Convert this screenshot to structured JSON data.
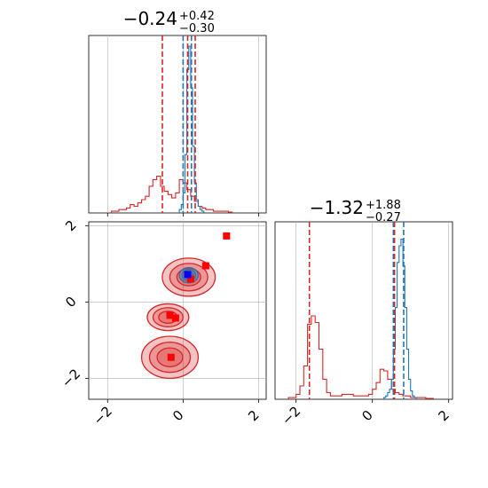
{
  "chart_data": [
    {
      "type": "histogram",
      "panel": "top-left",
      "title_value": "−0.24",
      "title_upper": "+0.42",
      "title_lower": "−0.30",
      "xlim": [
        -2.5,
        2.2
      ],
      "xticks": [
        -2,
        0,
        2
      ],
      "grid": true,
      "series": [
        {
          "color": "#d62728",
          "bins": [
            -1.9,
            -1.8,
            -1.7,
            -1.6,
            -1.5,
            -1.4,
            -1.3,
            -1.2,
            -1.1,
            -1.0,
            -0.9,
            -0.8,
            -0.7,
            -0.6,
            -0.5,
            -0.4,
            -0.3,
            -0.2,
            -0.1,
            0.0,
            0.1,
            0.2,
            0.3,
            0.4,
            0.5,
            0.6,
            0.7,
            0.8,
            0.9,
            1.0,
            1.1,
            1.2
          ],
          "values": [
            0.01,
            0.01,
            0.02,
            0.02,
            0.03,
            0.05,
            0.04,
            0.06,
            0.08,
            0.1,
            0.16,
            0.2,
            0.22,
            0.16,
            0.13,
            0.11,
            0.09,
            0.12,
            0.2,
            0.18,
            0.14,
            0.1,
            0.07,
            0.04,
            0.03,
            0.02,
            0.02,
            0.01,
            0.01,
            0.01,
            0.01,
            0.005
          ]
        },
        {
          "color": "#1f77b4",
          "bins": [
            -0.1,
            -0.05,
            0.0,
            0.05,
            0.1,
            0.15,
            0.2,
            0.25,
            0.3,
            0.35,
            0.4,
            0.45,
            0.5
          ],
          "values": [
            0.02,
            0.05,
            0.12,
            0.35,
            0.86,
            1.0,
            0.75,
            0.4,
            0.18,
            0.08,
            0.04,
            0.02,
            0.01
          ]
        }
      ],
      "vlines": [
        {
          "x": -0.55,
          "color": "#d62728"
        },
        {
          "x": 0.0,
          "color": "#1f77b4"
        },
        {
          "x": 0.12,
          "color": "#d62728"
        },
        {
          "x": 0.22,
          "color": "#1f77b4"
        },
        {
          "x": 0.32,
          "color": "#d62728"
        }
      ]
    },
    {
      "type": "scatter",
      "panel": "bottom-left",
      "xlim": [
        -2.5,
        2.2
      ],
      "ylim": [
        -2.55,
        2.1
      ],
      "xticks": [
        -2,
        0,
        2
      ],
      "yticks": [
        -2,
        0,
        2
      ],
      "grid": true,
      "contours": [
        {
          "cx": 0.15,
          "cy": 0.65,
          "rx": 0.7,
          "ry": 0.5,
          "color": "#d62728"
        },
        {
          "cx": -0.4,
          "cy": -0.4,
          "rx": 0.55,
          "ry": 0.35,
          "color": "#d62728"
        },
        {
          "cx": -0.35,
          "cy": -1.45,
          "rx": 0.75,
          "ry": 0.55,
          "color": "#d62728"
        },
        {
          "cx": 0.15,
          "cy": 0.7,
          "rx": 0.25,
          "ry": 0.2,
          "color": "#1f77b4"
        }
      ],
      "points": [
        {
          "x": 1.15,
          "y": 1.73,
          "color": "#ff0000"
        },
        {
          "x": 0.6,
          "y": 0.95,
          "color": "#ff0000"
        },
        {
          "x": 0.2,
          "y": 0.6,
          "color": "#ff0000"
        },
        {
          "x": 0.12,
          "y": 0.72,
          "color": "#0000ff"
        },
        {
          "x": -0.35,
          "y": -0.35,
          "color": "#ff0000"
        },
        {
          "x": -0.2,
          "y": -0.42,
          "color": "#ff0000"
        },
        {
          "x": -0.32,
          "y": -1.45,
          "color": "#ff0000"
        }
      ]
    },
    {
      "type": "histogram",
      "panel": "bottom-right",
      "title_value": "−1.32",
      "title_upper": "+1.88",
      "title_lower": "−0.27",
      "xlim": [
        -2.55,
        2.1
      ],
      "xticks": [
        -2,
        0,
        2
      ],
      "grid": true,
      "series": [
        {
          "color": "#d62728",
          "bins": [
            -2.2,
            -2.1,
            -2.0,
            -1.9,
            -1.8,
            -1.7,
            -1.6,
            -1.5,
            -1.4,
            -1.3,
            -1.2,
            -1.1,
            -1.0,
            -0.9,
            -0.8,
            -0.7,
            -0.6,
            -0.5,
            -0.4,
            -0.3,
            -0.2,
            -0.1,
            0.0,
            0.1,
            0.2,
            0.3,
            0.4,
            0.5,
            0.6,
            0.7,
            0.8,
            0.9,
            1.0,
            1.1,
            1.2,
            1.3,
            1.4,
            1.5
          ],
          "values": [
            0.01,
            0.01,
            0.03,
            0.08,
            0.2,
            0.45,
            0.5,
            0.46,
            0.3,
            0.12,
            0.04,
            0.02,
            0.02,
            0.02,
            0.03,
            0.03,
            0.03,
            0.02,
            0.02,
            0.02,
            0.02,
            0.03,
            0.06,
            0.1,
            0.18,
            0.17,
            0.12,
            0.06,
            0.04,
            0.03,
            0.02,
            0.02,
            0.01,
            0.01,
            0.01,
            0.01,
            0.005,
            0.005
          ]
        },
        {
          "color": "#1f77b4",
          "bins": [
            0.3,
            0.35,
            0.4,
            0.45,
            0.5,
            0.55,
            0.6,
            0.65,
            0.7,
            0.75,
            0.8,
            0.85,
            0.9,
            0.95,
            1.0,
            1.05,
            1.1
          ],
          "values": [
            0.01,
            0.02,
            0.04,
            0.06,
            0.12,
            0.3,
            0.55,
            0.82,
            0.92,
            0.96,
            0.8,
            0.55,
            0.3,
            0.12,
            0.05,
            0.02,
            0.01
          ]
        }
      ],
      "vlines": [
        {
          "x": -1.65,
          "color": "#d62728"
        },
        {
          "x": 0.55,
          "color": "#1f77b4"
        },
        {
          "x": 0.58,
          "color": "#d62728"
        },
        {
          "x": 0.82,
          "color": "#1f77b4"
        }
      ]
    }
  ]
}
